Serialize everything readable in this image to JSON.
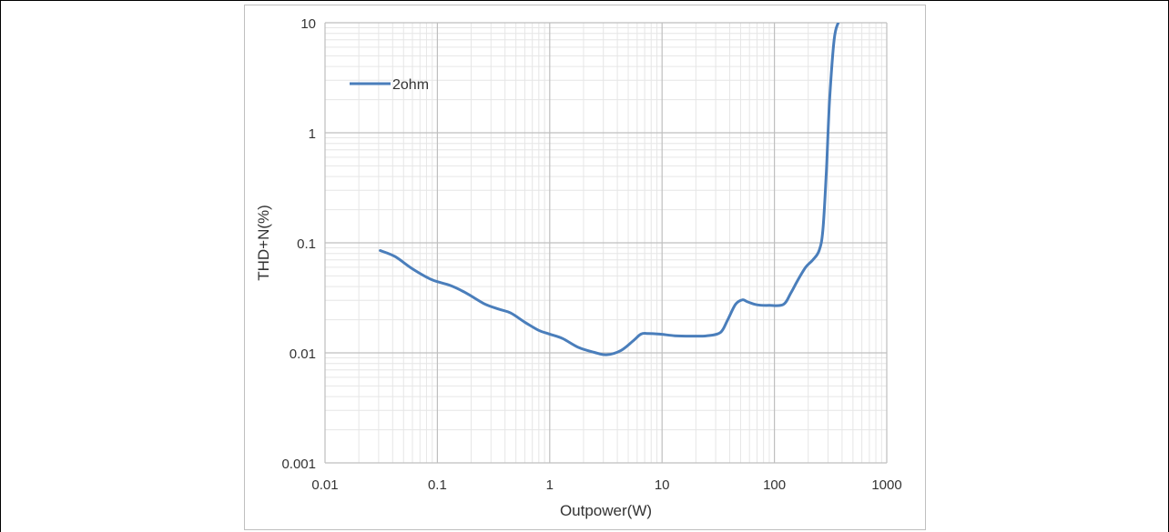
{
  "chart_data": {
    "type": "line",
    "xscale": "log",
    "yscale": "log",
    "xlabel": "Outpower(W)",
    "ylabel": "THD+N(%)",
    "xlim": [
      0.01,
      1000
    ],
    "ylim": [
      0.001,
      10
    ],
    "xticks": [
      "0.01",
      "0.1",
      "1",
      "10",
      "100",
      "1000"
    ],
    "yticks": [
      "0.001",
      "0.01",
      "0.1",
      "1",
      "10"
    ],
    "grid": true,
    "legend": "top-left",
    "series": [
      {
        "name": "2ohm",
        "color": "#4a7ebb",
        "x": [
          0.031,
          0.042,
          0.06,
          0.09,
          0.13,
          0.18,
          0.26,
          0.35,
          0.45,
          0.6,
          0.8,
          1.0,
          1.3,
          1.8,
          2.5,
          3.2,
          4.3,
          5.5,
          6.5,
          7.5,
          9.5,
          13,
          18,
          25,
          33,
          38,
          45,
          52,
          58,
          70,
          90,
          120,
          140,
          160,
          190,
          220,
          250,
          270,
          290,
          310,
          340,
          370,
          400
        ],
        "y": [
          0.085,
          0.075,
          0.058,
          0.046,
          0.041,
          0.035,
          0.028,
          0.025,
          0.023,
          0.019,
          0.016,
          0.0148,
          0.0135,
          0.0112,
          0.0101,
          0.0096,
          0.0105,
          0.0128,
          0.0148,
          0.015,
          0.0148,
          0.0143,
          0.0142,
          0.0143,
          0.0153,
          0.0195,
          0.0275,
          0.0303,
          0.029,
          0.0273,
          0.027,
          0.0275,
          0.035,
          0.045,
          0.06,
          0.07,
          0.085,
          0.13,
          0.45,
          2.0,
          7.0,
          10.0,
          11.0
        ]
      }
    ]
  }
}
